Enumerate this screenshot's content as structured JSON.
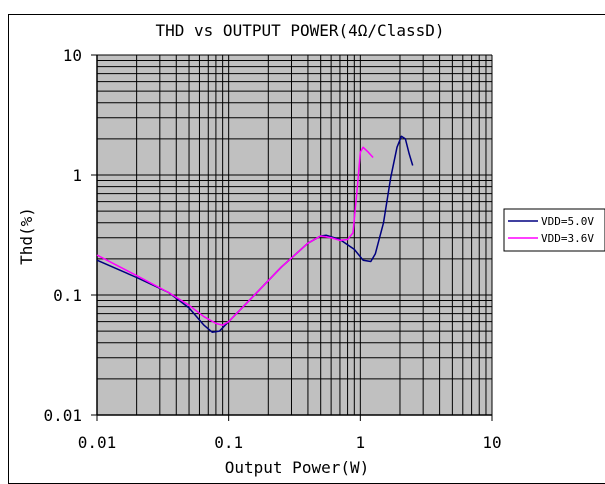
{
  "chart_data": {
    "type": "line",
    "title": "THD vs OUTPUT POWER(4Ω/ClassD)",
    "xlabel": "Output Power(W)",
    "ylabel": "Thd(%)",
    "x_scale": "log",
    "y_scale": "log",
    "xlim": [
      0.01,
      10
    ],
    "ylim": [
      0.01,
      10
    ],
    "x_ticks": [
      {
        "v": 0.01,
        "label": "0.01"
      },
      {
        "v": 0.1,
        "label": "0.1"
      },
      {
        "v": 1,
        "label": "1"
      },
      {
        "v": 10,
        "label": "10"
      }
    ],
    "y_ticks": [
      {
        "v": 10,
        "label": "10"
      },
      {
        "v": 1,
        "label": "1"
      },
      {
        "v": 0.1,
        "label": "0.1"
      },
      {
        "v": 0.01,
        "label": "0.01"
      }
    ],
    "grid": true,
    "plot_background": "#c0c0c0",
    "legend_position": "right",
    "series": [
      {
        "name": "VDD=5.0V",
        "color": "#000080",
        "points": [
          [
            0.01,
            0.195
          ],
          [
            0.02,
            0.14
          ],
          [
            0.035,
            0.105
          ],
          [
            0.05,
            0.078
          ],
          [
            0.065,
            0.056
          ],
          [
            0.075,
            0.049
          ],
          [
            0.085,
            0.05
          ],
          [
            0.1,
            0.06
          ],
          [
            0.15,
            0.095
          ],
          [
            0.25,
            0.17
          ],
          [
            0.4,
            0.27
          ],
          [
            0.5,
            0.31
          ],
          [
            0.55,
            0.315
          ],
          [
            0.7,
            0.29
          ],
          [
            0.9,
            0.24
          ],
          [
            1.05,
            0.195
          ],
          [
            1.2,
            0.19
          ],
          [
            1.3,
            0.22
          ],
          [
            1.5,
            0.4
          ],
          [
            1.7,
            0.95
          ],
          [
            1.9,
            1.7
          ],
          [
            2.05,
            2.1
          ],
          [
            2.2,
            2.0
          ],
          [
            2.35,
            1.5
          ],
          [
            2.5,
            1.2
          ]
        ]
      },
      {
        "name": "VDD=3.6V",
        "color": "#ff00ff",
        "points": [
          [
            0.01,
            0.215
          ],
          [
            0.02,
            0.145
          ],
          [
            0.035,
            0.105
          ],
          [
            0.05,
            0.082
          ],
          [
            0.065,
            0.066
          ],
          [
            0.08,
            0.058
          ],
          [
            0.09,
            0.056
          ],
          [
            0.1,
            0.06
          ],
          [
            0.15,
            0.095
          ],
          [
            0.25,
            0.17
          ],
          [
            0.4,
            0.27
          ],
          [
            0.5,
            0.31
          ],
          [
            0.6,
            0.3
          ],
          [
            0.7,
            0.285
          ],
          [
            0.8,
            0.29
          ],
          [
            0.88,
            0.33
          ],
          [
            0.95,
            0.8
          ],
          [
            1.0,
            1.55
          ],
          [
            1.05,
            1.7
          ],
          [
            1.15,
            1.55
          ],
          [
            1.25,
            1.4
          ]
        ]
      }
    ]
  }
}
